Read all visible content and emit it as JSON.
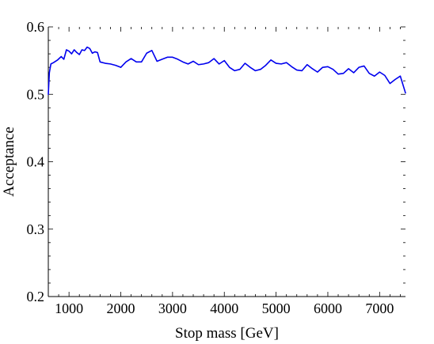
{
  "chart_data": {
    "type": "line",
    "title": "",
    "xlabel": "Stop mass [GeV]",
    "ylabel": "Acceptance",
    "xlim": [
      600,
      7500
    ],
    "ylim": [
      0.2,
      0.6
    ],
    "x_ticks": [
      1000,
      2000,
      3000,
      4000,
      5000,
      6000,
      7000
    ],
    "x_tick_labels": [
      "1000",
      "2000",
      "3000",
      "4000",
      "5000",
      "6000",
      "7000"
    ],
    "y_ticks": [
      0.2,
      0.3,
      0.4,
      0.5,
      0.6
    ],
    "y_tick_labels": [
      "0.2",
      "0.3",
      "0.4",
      "0.5",
      "0.6"
    ],
    "grid": false,
    "series": [
      {
        "color": "#0000ee",
        "x": [
          600,
          620,
          650,
          700,
          780,
          850,
          900,
          950,
          1000,
          1050,
          1100,
          1150,
          1200,
          1250,
          1300,
          1350,
          1400,
          1450,
          1500,
          1550,
          1600,
          1700,
          1800,
          1900,
          2000,
          2100,
          2200,
          2300,
          2400,
          2500,
          2600,
          2700,
          2800,
          2900,
          3000,
          3100,
          3200,
          3300,
          3400,
          3500,
          3600,
          3700,
          3800,
          3900,
          4000,
          4100,
          4200,
          4300,
          4400,
          4500,
          4600,
          4700,
          4800,
          4900,
          5000,
          5100,
          5200,
          5300,
          5400,
          5500,
          5600,
          5700,
          5800,
          5900,
          6000,
          6100,
          6200,
          6300,
          6400,
          6500,
          6600,
          6700,
          6800,
          6900,
          7000,
          7100,
          7200,
          7300,
          7400,
          7500
        ],
        "y": [
          0.5,
          0.532,
          0.545,
          0.547,
          0.551,
          0.556,
          0.552,
          0.566,
          0.564,
          0.56,
          0.566,
          0.562,
          0.559,
          0.566,
          0.565,
          0.57,
          0.568,
          0.561,
          0.563,
          0.562,
          0.548,
          0.546,
          0.545,
          0.543,
          0.54,
          0.548,
          0.553,
          0.548,
          0.548,
          0.561,
          0.565,
          0.549,
          0.552,
          0.555,
          0.555,
          0.552,
          0.548,
          0.545,
          0.549,
          0.544,
          0.545,
          0.547,
          0.553,
          0.545,
          0.55,
          0.54,
          0.535,
          0.537,
          0.546,
          0.54,
          0.535,
          0.537,
          0.543,
          0.551,
          0.546,
          0.545,
          0.547,
          0.541,
          0.536,
          0.535,
          0.544,
          0.538,
          0.533,
          0.54,
          0.541,
          0.537,
          0.53,
          0.531,
          0.538,
          0.532,
          0.54,
          0.542,
          0.531,
          0.527,
          0.533,
          0.528,
          0.516,
          0.522,
          0.527,
          0.502
        ]
      }
    ]
  }
}
